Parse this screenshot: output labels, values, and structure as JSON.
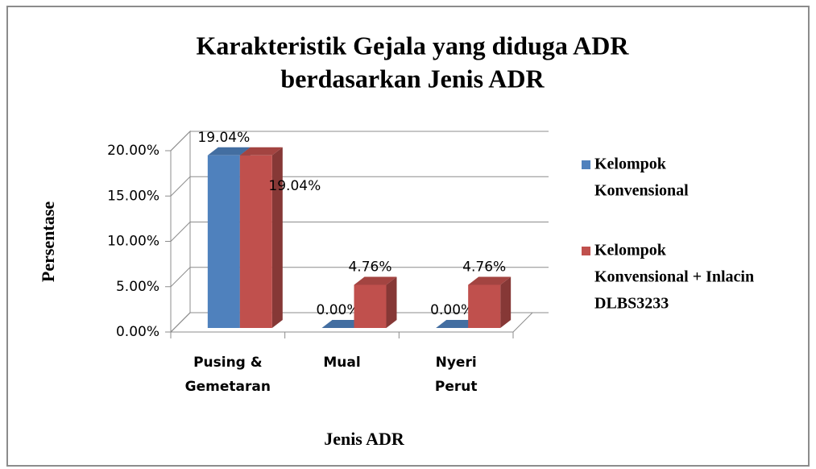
{
  "chart_data": {
    "type": "bar3d",
    "title": [
      "Karakteristik Gejala yang diduga ADR",
      "berdasarkan Jenis ADR"
    ],
    "x_label": "Jenis ADR",
    "y_label": "Persentase",
    "categories": [
      [
        "Pusing &",
        "Gemetaran"
      ],
      [
        "Mual"
      ],
      [
        "Nyeri",
        "Perut"
      ]
    ],
    "series": [
      {
        "name": [
          "Kelompok",
          "Konvensional"
        ],
        "color": "#4f81bd",
        "values": [
          19.04,
          0,
          0
        ],
        "value_labels": [
          "19.04%",
          "0.00%",
          "0.00%"
        ]
      },
      {
        "name": [
          "Kelompok",
          "Konvensional + Inlacin",
          "DLBS3233"
        ],
        "color": "#c0504d",
        "values": [
          19.04,
          4.76,
          4.76
        ],
        "value_labels": [
          "19.04%",
          "4.76%",
          "4.76%"
        ]
      }
    ],
    "ylim": [
      0,
      20
    ],
    "yticks": [
      {
        "value": 0,
        "label": "0.00%"
      },
      {
        "value": 5,
        "label": "5.00%"
      },
      {
        "value": 10,
        "label": "10.00%"
      },
      {
        "value": 15,
        "label": "15.00%"
      },
      {
        "value": 20,
        "label": "20.00%"
      }
    ],
    "grid": true,
    "legend": "right"
  }
}
